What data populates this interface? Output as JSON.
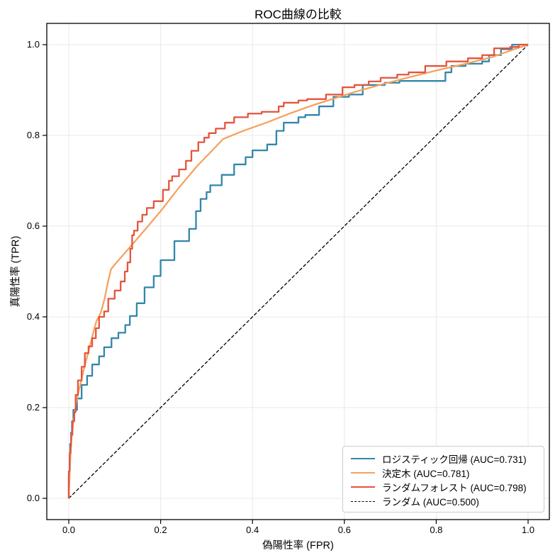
{
  "chart_data": {
    "type": "line",
    "title": "ROC曲線の比較",
    "xlabel": "偽陽性率 (FPR)",
    "ylabel": "真陽性率 (TPR)",
    "xlim": [
      -0.048,
      1.046
    ],
    "ylim": [
      -0.047,
      1.047
    ],
    "x_ticks": [
      0.0,
      0.2,
      0.4,
      0.6,
      0.8,
      1.0
    ],
    "x_tick_labels": [
      "0.0",
      "0.2",
      "0.4",
      "0.6",
      "0.8",
      "1.0"
    ],
    "y_ticks": [
      0.0,
      0.2,
      0.4,
      0.6,
      0.8,
      1.0
    ],
    "y_tick_labels": [
      "0.0",
      "0.2",
      "0.4",
      "0.6",
      "0.8",
      "1.0"
    ],
    "grid": true,
    "grid_color": "#e8e8e8",
    "spine_color": "#000000",
    "legend_position": "lower right",
    "legend_border_color": "#cccccc",
    "series": [
      {
        "name": "ロジスティック回帰 (AUC=0.731)",
        "auc": 0.731,
        "color": "#3286ab",
        "style": "step",
        "width": 2.3,
        "points": [
          [
            0,
            0
          ],
          [
            0.002,
            0.05
          ],
          [
            0.003,
            0.09
          ],
          [
            0.005,
            0.12
          ],
          [
            0.007,
            0.145
          ],
          [
            0.01,
            0.17
          ],
          [
            0.018,
            0.195
          ],
          [
            0.028,
            0.22
          ],
          [
            0.04,
            0.25
          ],
          [
            0.051,
            0.27
          ],
          [
            0.066,
            0.295
          ],
          [
            0.077,
            0.313
          ],
          [
            0.093,
            0.333
          ],
          [
            0.108,
            0.353
          ],
          [
            0.123,
            0.365
          ],
          [
            0.133,
            0.382
          ],
          [
            0.148,
            0.402
          ],
          [
            0.165,
            0.43
          ],
          [
            0.185,
            0.465
          ],
          [
            0.2,
            0.49
          ],
          [
            0.23,
            0.525
          ],
          [
            0.262,
            0.567
          ],
          [
            0.277,
            0.594
          ],
          [
            0.287,
            0.633
          ],
          [
            0.3,
            0.66
          ],
          [
            0.308,
            0.675
          ],
          [
            0.333,
            0.69
          ],
          [
            0.36,
            0.713
          ],
          [
            0.385,
            0.736
          ],
          [
            0.4,
            0.752
          ],
          [
            0.432,
            0.767
          ],
          [
            0.452,
            0.78
          ],
          [
            0.468,
            0.81
          ],
          [
            0.5,
            0.828
          ],
          [
            0.515,
            0.84
          ],
          [
            0.545,
            0.845
          ],
          [
            0.576,
            0.864
          ],
          [
            0.61,
            0.885
          ],
          [
            0.64,
            0.89
          ],
          [
            0.688,
            0.911
          ],
          [
            0.72,
            0.916
          ],
          [
            0.82,
            0.92
          ],
          [
            0.833,
            0.939
          ],
          [
            0.864,
            0.953
          ],
          [
            0.9,
            0.958
          ],
          [
            0.915,
            0.963
          ],
          [
            0.941,
            0.977
          ],
          [
            0.965,
            0.99
          ],
          [
            0.975,
            1.0
          ],
          [
            1.0,
            1.0
          ]
        ]
      },
      {
        "name": "決定木 (AUC=0.781)",
        "auc": 0.781,
        "color": "#f5a25f",
        "style": "line",
        "width": 2.3,
        "points": [
          [
            0,
            0
          ],
          [
            0.002,
            0.055
          ],
          [
            0.004,
            0.1
          ],
          [
            0.006,
            0.13
          ],
          [
            0.009,
            0.16
          ],
          [
            0.013,
            0.19
          ],
          [
            0.018,
            0.22
          ],
          [
            0.025,
            0.25
          ],
          [
            0.033,
            0.285
          ],
          [
            0.042,
            0.32
          ],
          [
            0.052,
            0.36
          ],
          [
            0.06,
            0.39
          ],
          [
            0.07,
            0.41
          ],
          [
            0.078,
            0.44
          ],
          [
            0.085,
            0.475
          ],
          [
            0.092,
            0.505
          ],
          [
            0.1,
            0.515
          ],
          [
            0.13,
            0.55
          ],
          [
            0.16,
            0.585
          ],
          [
            0.2,
            0.633
          ],
          [
            0.24,
            0.685
          ],
          [
            0.28,
            0.733
          ],
          [
            0.32,
            0.775
          ],
          [
            0.336,
            0.792
          ],
          [
            0.38,
            0.81
          ],
          [
            0.43,
            0.828
          ],
          [
            0.48,
            0.848
          ],
          [
            0.53,
            0.866
          ],
          [
            0.58,
            0.882
          ],
          [
            0.62,
            0.895
          ],
          [
            0.68,
            0.912
          ],
          [
            0.74,
            0.928
          ],
          [
            0.8,
            0.943
          ],
          [
            0.86,
            0.957
          ],
          [
            0.92,
            0.972
          ],
          [
            0.97,
            0.99
          ],
          [
            1.0,
            1.0
          ]
        ]
      },
      {
        "name": "ランダムフォレスト (AUC=0.798)",
        "auc": 0.798,
        "color": "#e3553c",
        "style": "step",
        "width": 2.3,
        "points": [
          [
            0,
            0
          ],
          [
            0.002,
            0.06
          ],
          [
            0.004,
            0.1
          ],
          [
            0.005,
            0.115
          ],
          [
            0.008,
            0.14
          ],
          [
            0.012,
            0.17
          ],
          [
            0.015,
            0.19
          ],
          [
            0.02,
            0.228
          ],
          [
            0.028,
            0.26
          ],
          [
            0.035,
            0.29
          ],
          [
            0.043,
            0.32
          ],
          [
            0.051,
            0.335
          ],
          [
            0.059,
            0.353
          ],
          [
            0.066,
            0.375
          ],
          [
            0.077,
            0.4
          ],
          [
            0.086,
            0.412
          ],
          [
            0.1,
            0.44
          ],
          [
            0.113,
            0.458
          ],
          [
            0.122,
            0.478
          ],
          [
            0.128,
            0.5
          ],
          [
            0.134,
            0.52
          ],
          [
            0.138,
            0.55
          ],
          [
            0.142,
            0.58
          ],
          [
            0.15,
            0.59
          ],
          [
            0.16,
            0.61
          ],
          [
            0.17,
            0.625
          ],
          [
            0.185,
            0.64
          ],
          [
            0.205,
            0.655
          ],
          [
            0.218,
            0.68
          ],
          [
            0.225,
            0.7
          ],
          [
            0.24,
            0.71
          ],
          [
            0.255,
            0.725
          ],
          [
            0.267,
            0.744
          ],
          [
            0.282,
            0.766
          ],
          [
            0.295,
            0.785
          ],
          [
            0.305,
            0.795
          ],
          [
            0.32,
            0.805
          ],
          [
            0.34,
            0.815
          ],
          [
            0.36,
            0.828
          ],
          [
            0.39,
            0.84
          ],
          [
            0.42,
            0.848
          ],
          [
            0.457,
            0.852
          ],
          [
            0.468,
            0.864
          ],
          [
            0.5,
            0.872
          ],
          [
            0.519,
            0.877
          ],
          [
            0.56,
            0.88
          ],
          [
            0.596,
            0.89
          ],
          [
            0.622,
            0.906
          ],
          [
            0.653,
            0.911
          ],
          [
            0.679,
            0.919
          ],
          [
            0.715,
            0.927
          ],
          [
            0.74,
            0.934
          ],
          [
            0.776,
            0.939
          ],
          [
            0.822,
            0.953
          ],
          [
            0.869,
            0.963
          ],
          [
            0.9,
            0.97
          ],
          [
            0.926,
            0.977
          ],
          [
            0.961,
            0.992
          ],
          [
            0.98,
            0.995
          ],
          [
            1.0,
            1.0
          ]
        ]
      },
      {
        "name": "ランダム (AUC=0.500)",
        "auc": 0.5,
        "color": "#000000",
        "style": "line",
        "dash": "5 2.5",
        "width": 1.3,
        "points": [
          [
            0,
            0
          ],
          [
            1,
            1
          ]
        ]
      }
    ]
  }
}
